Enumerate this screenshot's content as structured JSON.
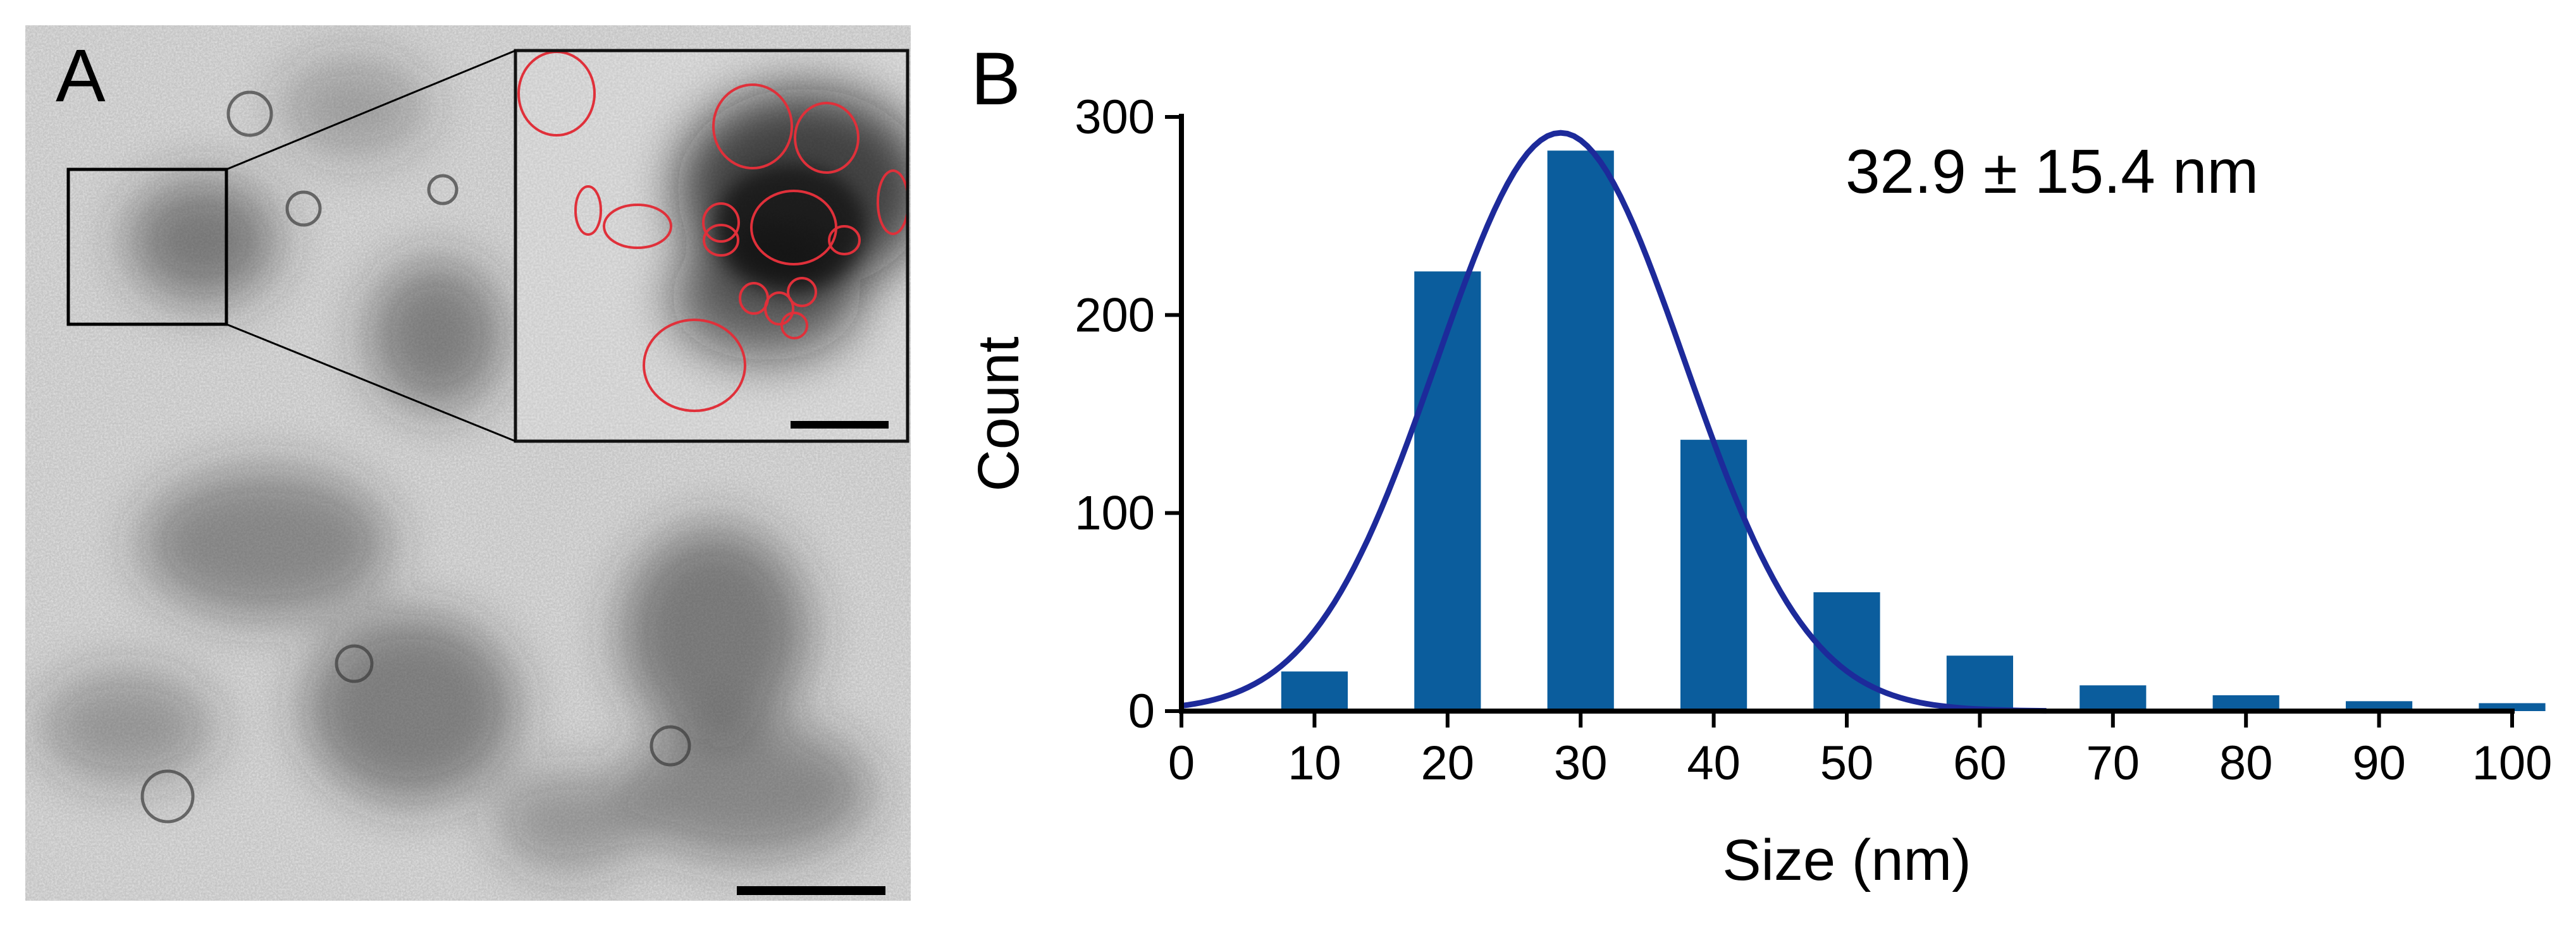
{
  "panels": {
    "a": {
      "letter": "A"
    },
    "b": {
      "letter": "B"
    }
  },
  "colors": {
    "bar": "#0b5d9d",
    "fit": "#1d2a9a",
    "outline": "#e0303a",
    "axis": "#000000"
  },
  "chart_data": {
    "type": "bar",
    "title": "",
    "xlabel": "Size (nm)",
    "ylabel": "Count",
    "annotation": "32.9 ± 15.4 nm",
    "x": [
      10,
      20,
      30,
      40,
      50,
      60,
      70,
      80,
      90,
      100
    ],
    "values": [
      20,
      222,
      283,
      137,
      60,
      28,
      13,
      8,
      5,
      4
    ],
    "xlim": [
      0,
      100
    ],
    "ylim": [
      0,
      300
    ],
    "xticks": [
      0,
      10,
      20,
      30,
      40,
      50,
      60,
      70,
      80,
      90,
      100
    ],
    "yticks": [
      0,
      100,
      200,
      300
    ],
    "fit": {
      "type": "gaussian",
      "name": "Gaussian fit",
      "amplitude": 292,
      "mean": 28.5,
      "sd": 9.3,
      "x_range": [
        0,
        65
      ]
    }
  }
}
